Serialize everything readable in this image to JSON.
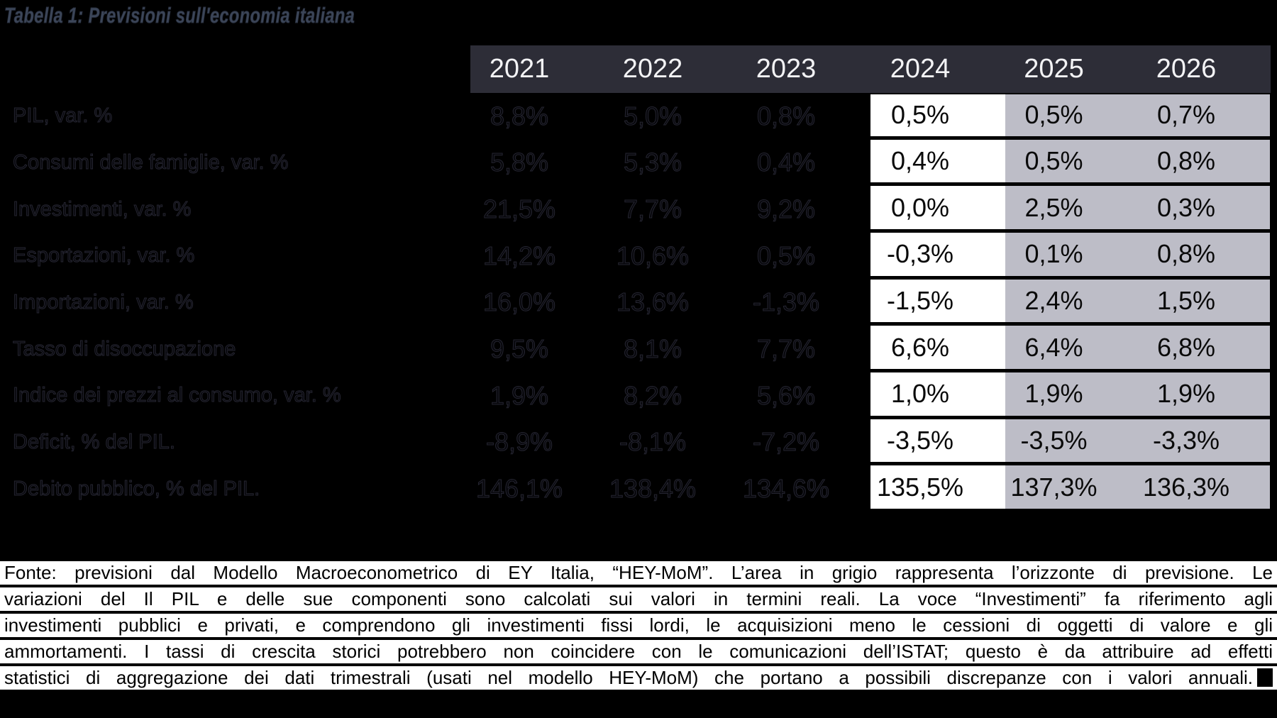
{
  "title": "Tabella 1: Previsioni sull'economia italiana",
  "colors": {
    "background": "#000000",
    "header_bg": "#2d2d37",
    "header_text": "#f3f3f5",
    "forecast_current_bg": "#ffffff",
    "forecast_future_bg": "#bdbdc7",
    "title_color": "#3c4659"
  },
  "table": {
    "years": [
      "2021",
      "2022",
      "2023",
      "2024",
      "2025",
      "2026"
    ],
    "forecast_years": [
      "2024",
      "2025",
      "2026"
    ],
    "rows": [
      {
        "label": "PIL, var. %",
        "values": [
          "8,8%",
          "5,0%",
          "0,8%",
          "0,5%",
          "0,5%",
          "0,7%"
        ]
      },
      {
        "label": "Consumi delle famiglie, var. %",
        "values": [
          "5,8%",
          "5,3%",
          "0,4%",
          "0,4%",
          "0,5%",
          "0,8%"
        ]
      },
      {
        "label": "Investimenti, var. %",
        "values": [
          "21,5%",
          "7,7%",
          "9,2%",
          "0,0%",
          "2,5%",
          "0,3%"
        ]
      },
      {
        "label": "Esportazioni, var. %",
        "values": [
          "14,2%",
          "10,6%",
          "0,5%",
          "-0,3%",
          "0,1%",
          "0,8%"
        ]
      },
      {
        "label": "Importazioni, var. %",
        "values": [
          "16,0%",
          "13,6%",
          "-1,3%",
          "-1,5%",
          "2,4%",
          "1,5%"
        ]
      },
      {
        "label": "Tasso di disoccupazione",
        "values": [
          "9,5%",
          "8,1%",
          "7,7%",
          "6,6%",
          "6,4%",
          "6,8%"
        ]
      },
      {
        "label": "Indice dei prezzi al consumo, var. %",
        "values": [
          "1,9%",
          "8,2%",
          "5,6%",
          "1,0%",
          "1,9%",
          "1,9%"
        ]
      },
      {
        "label": "Deficit, % del PIL.",
        "values": [
          "-8,9%",
          "-8,1%",
          "-7,2%",
          "-3,5%",
          "-3,5%",
          "-3,3%"
        ]
      },
      {
        "label": "Debito pubblico, % del PIL.",
        "values": [
          "146,1%",
          "138,4%",
          "134,6%",
          "135,5%",
          "137,3%",
          "136,3%"
        ]
      }
    ]
  },
  "footer": {
    "lines": [
      "Fonte: previsioni dal Modello Macroeconometrico di EY Italia, “HEY-MoM”. L’area in grigio rappresenta l’orizzonte di previsione. Le",
      "variazioni del Il PIL e delle sue componenti sono calcolati sui valori in termini reali. La voce “Investimenti” fa riferimento agli",
      "investimenti pubblici e privati, e comprendono gli investimenti fissi lordi, le acquisizioni meno le cessioni di oggetti di valore e gli",
      "ammortamenti. I tassi di crescita storici potrebbero non coincidere con le comunicazioni dell’ISTAT; questo è da attribuire ad effetti",
      "statistici di aggregazione dei dati trimestrali (usati nel modello HEY-MoM) che portano a possibili discrepanze con i valori annuali."
    ]
  }
}
